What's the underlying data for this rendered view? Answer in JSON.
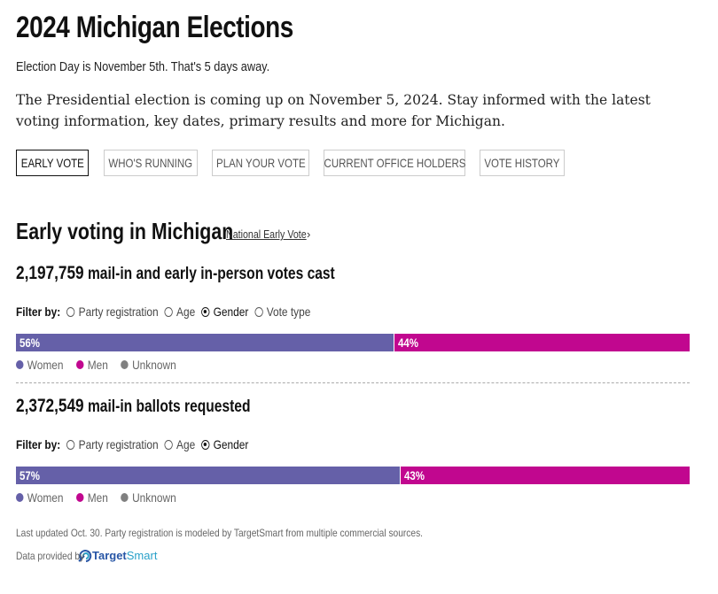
{
  "header": {
    "title": "2024 Michigan Elections",
    "subtitle": "Election Day is November 5th. That's 5 days away.",
    "intro": "The Presidential election is coming up on November 5, 2024. Stay informed with the latest voting information, key dates, primary results and more for Michigan."
  },
  "tabs": [
    {
      "label": "EARLY VOTE",
      "active": true
    },
    {
      "label": "WHO'S RUNNING",
      "active": false
    },
    {
      "label": "PLAN YOUR VOTE",
      "active": false
    },
    {
      "label": "CURRENT OFFICE HOLDERS",
      "active": false
    },
    {
      "label": "VOTE HISTORY",
      "active": false
    }
  ],
  "section": {
    "heading": "Early voting in Michigan",
    "link_label": "National Early Vote",
    "link_chevron": "›"
  },
  "colors": {
    "women": "#6560a8",
    "men": "#c1078f",
    "unknown": "#808080"
  },
  "blocks": [
    {
      "count": "2,197,759",
      "count_label": "mail-in and early in-person votes cast",
      "filter_label": "Filter by:",
      "filters": [
        {
          "label": "Party registration",
          "selected": false
        },
        {
          "label": "Age",
          "selected": false
        },
        {
          "label": "Gender",
          "selected": true
        },
        {
          "label": "Vote type",
          "selected": false
        }
      ],
      "bar": [
        {
          "name": "Women",
          "pct": 56,
          "pct_label": "56%"
        },
        {
          "name": "Men",
          "pct": 44,
          "pct_label": "44%"
        }
      ],
      "legend": [
        "Women",
        "Men",
        "Unknown"
      ]
    },
    {
      "count": "2,372,549",
      "count_label": "mail-in ballots requested",
      "filter_label": "Filter by:",
      "filters": [
        {
          "label": "Party registration",
          "selected": false
        },
        {
          "label": "Age",
          "selected": false
        },
        {
          "label": "Gender",
          "selected": true
        }
      ],
      "bar": [
        {
          "name": "Women",
          "pct": 57,
          "pct_label": "57%"
        },
        {
          "name": "Men",
          "pct": 43,
          "pct_label": "43%"
        }
      ],
      "legend": [
        "Women",
        "Men",
        "Unknown"
      ]
    }
  ],
  "footer": {
    "note": "Last updated Oct. 30. Party registration is modeled by TargetSmart from multiple commercial sources.",
    "provided_by": "Data provided by",
    "provider_logo_part1": "Target",
    "provider_logo_part2": "Smart",
    "provider_icon": "targetsmart-logo-icon"
  }
}
